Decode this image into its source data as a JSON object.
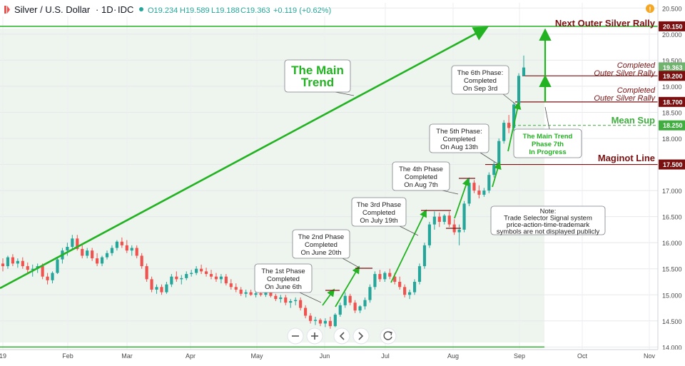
{
  "header": {
    "symbol": "Silver / U.S. Dollar",
    "interval": "1D",
    "exchange": "IDC",
    "open": "O19.234",
    "high": "H19.589",
    "low": "L19.188",
    "close": "C19.363",
    "change": "+0.119 (+0.62%)"
  },
  "colors": {
    "up": "#26a69a",
    "down": "#ef5350",
    "trend": "#22b222",
    "maginot": "#7b1010",
    "mean_sup": "#3fae3f",
    "price_tag": "#6fb36f"
  },
  "toolbar": {
    "zoom_out_icon": "minus-icon",
    "zoom_in_icon": "plus-icon",
    "scroll_left_icon": "chevron-left-icon",
    "scroll_right_icon": "chevron-right-icon",
    "reset_icon": "reset-icon"
  },
  "chart_data": {
    "type": "candlestick",
    "y_axis_labels": [
      "20.500",
      "20.000",
      "19.500",
      "19.000",
      "18.500",
      "18.000",
      "17.500",
      "17.000",
      "16.500",
      "16.000",
      "15.500",
      "15.000",
      "14.500",
      "14.000"
    ],
    "ylim": [
      13.95,
      20.6
    ],
    "x_axis_labels": [
      "19",
      "Feb",
      "Mar",
      "Apr",
      "May",
      "Jun",
      "Jul",
      "Aug",
      "Sep",
      "Oct",
      "Nov"
    ],
    "grid": true,
    "price_tags": [
      {
        "value": 20.15,
        "label": "20.150",
        "style": "maginot"
      },
      {
        "value": 19.363,
        "label": "19.363",
        "style": "current"
      },
      {
        "value": 19.2,
        "label": "19.200",
        "style": "maginot"
      },
      {
        "value": 18.7,
        "label": "18.700",
        "style": "maginot"
      },
      {
        "value": 18.25,
        "label": "18.250",
        "style": "mean"
      },
      {
        "value": 17.5,
        "label": "17.500",
        "style": "maginot"
      }
    ],
    "annotations": {
      "main_trend": "The Main\nTrend",
      "phase1": "The 1st Phase\nCompleted\nOn June 6th",
      "phase2": "The 2nd Phase\nCompleted\nOn June 20th",
      "phase3": "The 3rd Phase\nCompleted\nOn July 19th",
      "phase4": "The 4th Phase\nCompleted\nOn Aug 7th",
      "phase5": "The 5th Phase:\nCompleted\nOn Aug 13th",
      "phase6": "The 6th Phase:\nCompleted\nOn Sep 3rd",
      "phase7": "The Main Trend\nPhase 7th\nIn Progress",
      "note": "Note:\nTrade Selector Signal system\nprice-action-time-trademark\nsymbols are not displayed publicly",
      "next_outer": "Next Outer Silver Rally",
      "completed_outer_1": "Completed\nOuter Silver Rally",
      "completed_outer_2": "Completed\nOuter Silver Rally",
      "mean_sup": "Mean Sup",
      "maginot_line": "Maginot Line"
    },
    "lines": {
      "next_outer": 20.15,
      "completed_outer_1": 19.2,
      "completed_outer_2": 18.7,
      "mean_sup": 18.25,
      "maginot": 17.5,
      "base": 14.0
    },
    "candles": [
      [
        15.6,
        15.7,
        15.45,
        15.55
      ],
      [
        15.55,
        15.75,
        15.5,
        15.72
      ],
      [
        15.72,
        15.78,
        15.55,
        15.6
      ],
      [
        15.6,
        15.7,
        15.52,
        15.65
      ],
      [
        15.65,
        15.72,
        15.5,
        15.55
      ],
      [
        15.55,
        15.62,
        15.4,
        15.48
      ],
      [
        15.48,
        15.58,
        15.35,
        15.5
      ],
      [
        15.5,
        15.6,
        15.42,
        15.55
      ],
      [
        15.55,
        15.6,
        15.3,
        15.35
      ],
      [
        15.35,
        15.42,
        15.2,
        15.28
      ],
      [
        15.28,
        15.45,
        15.22,
        15.42
      ],
      [
        15.42,
        15.7,
        15.4,
        15.68
      ],
      [
        15.68,
        15.9,
        15.6,
        15.85
      ],
      [
        15.85,
        16.0,
        15.75,
        15.92
      ],
      [
        15.92,
        16.15,
        15.88,
        16.08
      ],
      [
        16.08,
        16.15,
        15.85,
        15.88
      ],
      [
        15.88,
        15.95,
        15.7,
        15.75
      ],
      [
        15.75,
        15.9,
        15.7,
        15.85
      ],
      [
        15.85,
        15.9,
        15.65,
        15.7
      ],
      [
        15.7,
        15.8,
        15.55,
        15.6
      ],
      [
        15.6,
        15.75,
        15.55,
        15.72
      ],
      [
        15.72,
        15.85,
        15.68,
        15.8
      ],
      [
        15.8,
        15.95,
        15.75,
        15.9
      ],
      [
        15.9,
        16.05,
        15.85,
        16.02
      ],
      [
        16.02,
        16.1,
        15.9,
        15.95
      ],
      [
        15.95,
        16.05,
        15.8,
        15.85
      ],
      [
        15.85,
        15.95,
        15.75,
        15.9
      ],
      [
        15.9,
        15.95,
        15.7,
        15.75
      ],
      [
        15.75,
        15.8,
        15.5,
        15.55
      ],
      [
        15.55,
        15.6,
        15.25,
        15.3
      ],
      [
        15.3,
        15.35,
        15.05,
        15.1
      ],
      [
        15.1,
        15.2,
        15.02,
        15.15
      ],
      [
        15.15,
        15.2,
        15.0,
        15.05
      ],
      [
        15.05,
        15.25,
        15.02,
        15.2
      ],
      [
        15.2,
        15.4,
        15.15,
        15.35
      ],
      [
        15.35,
        15.45,
        15.25,
        15.3
      ],
      [
        15.3,
        15.38,
        15.2,
        15.32
      ],
      [
        15.32,
        15.45,
        15.28,
        15.4
      ],
      [
        15.4,
        15.48,
        15.35,
        15.42
      ],
      [
        15.42,
        15.55,
        15.38,
        15.5
      ],
      [
        15.5,
        15.58,
        15.4,
        15.45
      ],
      [
        15.45,
        15.52,
        15.35,
        15.4
      ],
      [
        15.4,
        15.48,
        15.3,
        15.35
      ],
      [
        15.35,
        15.42,
        15.25,
        15.3
      ],
      [
        15.3,
        15.4,
        15.22,
        15.35
      ],
      [
        15.35,
        15.4,
        15.18,
        15.22
      ],
      [
        15.22,
        15.3,
        15.1,
        15.15
      ],
      [
        15.15,
        15.22,
        15.05,
        15.1
      ],
      [
        15.1,
        15.15,
        14.98,
        15.02
      ],
      [
        15.02,
        15.1,
        14.95,
        15.05
      ],
      [
        15.05,
        15.1,
        14.98,
        15.0
      ],
      [
        15.0,
        15.06,
        14.95,
        15.03
      ],
      [
        15.03,
        15.1,
        14.97,
        15.0
      ],
      [
        15.0,
        15.08,
        14.96,
        15.04
      ],
      [
        15.04,
        15.08,
        14.95,
        14.98
      ],
      [
        14.98,
        15.02,
        14.88,
        14.92
      ],
      [
        14.92,
        15.0,
        14.85,
        14.95
      ],
      [
        14.95,
        15.0,
        14.8,
        14.85
      ],
      [
        14.85,
        14.92,
        14.75,
        14.88
      ],
      [
        14.88,
        14.95,
        14.8,
        14.9
      ],
      [
        14.9,
        14.95,
        14.7,
        14.75
      ],
      [
        14.75,
        14.8,
        14.55,
        14.6
      ],
      [
        14.6,
        14.65,
        14.45,
        14.5
      ],
      [
        14.5,
        14.58,
        14.42,
        14.52
      ],
      [
        14.52,
        14.55,
        14.4,
        14.45
      ],
      [
        14.45,
        14.55,
        14.38,
        14.5
      ],
      [
        14.5,
        14.58,
        14.35,
        14.4
      ],
      [
        14.4,
        14.65,
        14.38,
        14.62
      ],
      [
        14.62,
        14.85,
        14.58,
        14.8
      ],
      [
        14.8,
        15.05,
        14.75,
        14.98
      ],
      [
        14.98,
        15.02,
        14.8,
        14.85
      ],
      [
        14.85,
        14.9,
        14.65,
        14.7
      ],
      [
        14.7,
        14.8,
        14.65,
        14.78
      ],
      [
        14.78,
        14.95,
        14.72,
        14.9
      ],
      [
        14.9,
        15.2,
        14.85,
        15.15
      ],
      [
        15.15,
        15.45,
        15.1,
        15.4
      ],
      [
        15.4,
        15.48,
        15.25,
        15.3
      ],
      [
        15.3,
        15.45,
        15.25,
        15.42
      ],
      [
        15.42,
        15.5,
        15.3,
        15.35
      ],
      [
        15.35,
        15.42,
        15.2,
        15.25
      ],
      [
        15.25,
        15.35,
        15.1,
        15.15
      ],
      [
        15.15,
        15.2,
        14.95,
        15.0
      ],
      [
        15.0,
        15.1,
        14.92,
        15.05
      ],
      [
        15.05,
        15.3,
        15.0,
        15.25
      ],
      [
        15.25,
        15.6,
        15.2,
        15.55
      ],
      [
        15.55,
        16.0,
        15.5,
        15.95
      ],
      [
        15.95,
        16.4,
        15.9,
        16.35
      ],
      [
        16.35,
        16.6,
        16.25,
        16.5
      ],
      [
        16.5,
        16.58,
        16.3,
        16.4
      ],
      [
        16.4,
        16.55,
        16.35,
        16.52
      ],
      [
        16.52,
        16.6,
        16.3,
        16.35
      ],
      [
        16.35,
        16.45,
        16.15,
        16.2
      ],
      [
        16.2,
        16.35,
        15.95,
        16.25
      ],
      [
        16.25,
        16.8,
        16.2,
        16.75
      ],
      [
        16.75,
        17.25,
        16.7,
        17.15
      ],
      [
        17.15,
        17.2,
        16.95,
        17.0
      ],
      [
        17.0,
        17.1,
        16.85,
        16.92
      ],
      [
        16.92,
        17.05,
        16.88,
        17.0
      ],
      [
        17.0,
        17.35,
        16.95,
        17.3
      ],
      [
        17.3,
        17.55,
        17.25,
        17.5
      ],
      [
        17.5,
        18.0,
        17.45,
        17.95
      ],
      [
        17.95,
        18.35,
        17.9,
        18.3
      ],
      [
        18.3,
        18.45,
        18.1,
        18.2
      ],
      [
        18.2,
        18.7,
        18.15,
        18.65
      ],
      [
        18.65,
        19.25,
        18.6,
        19.2
      ],
      [
        19.2,
        19.59,
        19.19,
        19.36
      ]
    ]
  }
}
